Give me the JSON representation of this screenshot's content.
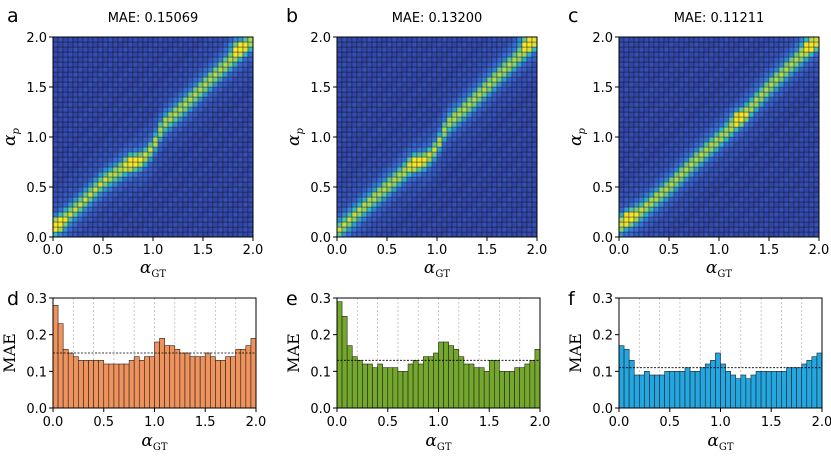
{
  "colors": {
    "orange": "#F0925B",
    "green": "#74A82C",
    "blue": "#22A7E2",
    "heat_low": "#2E2E8C",
    "heat_mid": "#2CB8CE",
    "heat_high": "#F7E62B"
  },
  "chart_data": [
    {
      "panel": "a",
      "type": "heatmap",
      "title": "MAE: 0.15069",
      "xlabel": "α",
      "xlabel_sub": "GT",
      "ylabel": "α",
      "ylabel_sub": "p",
      "xlim": [
        0,
        2
      ],
      "ylim": [
        0,
        2
      ],
      "xticks": [
        "0.0",
        "0.5",
        "1.0",
        "1.5",
        "2.0"
      ],
      "yticks": [
        "0.0",
        "0.5",
        "1.0",
        "1.5",
        "2.0"
      ],
      "bins": 40,
      "ridge": [
        [
          0.0,
          0.08
        ],
        [
          0.25,
          0.3
        ],
        [
          0.5,
          0.55
        ],
        [
          0.75,
          0.72
        ],
        [
          0.9,
          0.78
        ],
        [
          1.0,
          0.9
        ],
        [
          1.1,
          1.12
        ],
        [
          1.3,
          1.3
        ],
        [
          1.6,
          1.6
        ],
        [
          2.0,
          1.98
        ]
      ],
      "peaks": [
        [
          0.05,
          0.12
        ],
        [
          0.8,
          0.75
        ],
        [
          1.85,
          1.9
        ]
      ]
    },
    {
      "panel": "b",
      "type": "heatmap",
      "title": "MAE: 0.13200",
      "xlabel": "α",
      "xlabel_sub": "GT",
      "ylabel": "α",
      "ylabel_sub": "p",
      "xlim": [
        0,
        2
      ],
      "ylim": [
        0,
        2
      ],
      "xticks": [
        "0.0",
        "0.5",
        "1.0",
        "1.5",
        "2.0"
      ],
      "yticks": [
        "0.0",
        "0.5",
        "1.0",
        "1.5",
        "2.0"
      ],
      "bins": 40,
      "ridge": [
        [
          0.0,
          0.05
        ],
        [
          0.25,
          0.28
        ],
        [
          0.5,
          0.5
        ],
        [
          0.75,
          0.72
        ],
        [
          0.9,
          0.78
        ],
        [
          1.0,
          0.9
        ],
        [
          1.1,
          1.12
        ],
        [
          1.3,
          1.3
        ],
        [
          1.6,
          1.6
        ],
        [
          2.0,
          1.98
        ]
      ],
      "peaks": [
        [
          0.8,
          0.75
        ],
        [
          1.9,
          1.95
        ]
      ]
    },
    {
      "panel": "c",
      "type": "heatmap",
      "title": "MAE: 0.11211",
      "xlabel": "α",
      "xlabel_sub": "GT",
      "ylabel": "α",
      "ylabel_sub": "p",
      "xlim": [
        0,
        2
      ],
      "ylim": [
        0,
        2
      ],
      "xticks": [
        "0.0",
        "0.5",
        "1.0",
        "1.5",
        "2.0"
      ],
      "yticks": [
        "0.0",
        "0.5",
        "1.0",
        "1.5",
        "2.0"
      ],
      "bins": 40,
      "ridge": [
        [
          0.0,
          0.1
        ],
        [
          0.25,
          0.28
        ],
        [
          0.5,
          0.5
        ],
        [
          0.75,
          0.75
        ],
        [
          1.0,
          0.98
        ],
        [
          1.25,
          1.22
        ],
        [
          1.5,
          1.5
        ],
        [
          1.75,
          1.75
        ],
        [
          2.0,
          1.98
        ]
      ],
      "peaks": [
        [
          0.1,
          0.2
        ],
        [
          1.2,
          1.2
        ],
        [
          1.9,
          1.92
        ]
      ]
    },
    {
      "panel": "d",
      "type": "bar",
      "xlabel": "α",
      "xlabel_sub": "GT",
      "ylabel": "MAE",
      "xlim": [
        0,
        2
      ],
      "ylim": [
        0,
        0.3
      ],
      "xticks": [
        "0.0",
        "0.5",
        "1.0",
        "1.5",
        "2.0"
      ],
      "yticks": [
        "0.0",
        "0.1",
        "0.2",
        "0.3"
      ],
      "mean_line": 0.15,
      "bar_width": 0.05,
      "values": [
        0.28,
        0.23,
        0.16,
        0.15,
        0.14,
        0.13,
        0.13,
        0.13,
        0.13,
        0.13,
        0.12,
        0.12,
        0.12,
        0.12,
        0.12,
        0.13,
        0.14,
        0.13,
        0.14,
        0.14,
        0.18,
        0.19,
        0.17,
        0.17,
        0.16,
        0.15,
        0.15,
        0.14,
        0.14,
        0.14,
        0.15,
        0.14,
        0.13,
        0.13,
        0.14,
        0.14,
        0.16,
        0.16,
        0.17,
        0.19
      ]
    },
    {
      "panel": "e",
      "type": "bar",
      "xlabel": "α",
      "xlabel_sub": "GT",
      "ylabel": "MAE",
      "xlim": [
        0,
        2
      ],
      "ylim": [
        0,
        0.3
      ],
      "xticks": [
        "0.0",
        "0.5",
        "1.0",
        "1.5",
        "2.0"
      ],
      "yticks": [
        "0.0",
        "0.1",
        "0.2",
        "0.3"
      ],
      "mean_line": 0.13,
      "bar_width": 0.05,
      "values": [
        0.29,
        0.25,
        0.17,
        0.14,
        0.13,
        0.12,
        0.12,
        0.11,
        0.12,
        0.11,
        0.11,
        0.11,
        0.1,
        0.1,
        0.12,
        0.13,
        0.12,
        0.14,
        0.14,
        0.15,
        0.18,
        0.18,
        0.17,
        0.16,
        0.14,
        0.12,
        0.12,
        0.11,
        0.11,
        0.1,
        0.13,
        0.13,
        0.1,
        0.1,
        0.1,
        0.11,
        0.11,
        0.12,
        0.13,
        0.16
      ]
    },
    {
      "panel": "f",
      "type": "bar",
      "xlabel": "α",
      "xlabel_sub": "GT",
      "ylabel": "MAE",
      "xlim": [
        0,
        2
      ],
      "ylim": [
        0,
        0.3
      ],
      "xticks": [
        "0.0",
        "0.5",
        "1.0",
        "1.5",
        "2.0"
      ],
      "yticks": [
        "0.0",
        "0.1",
        "0.2",
        "0.3"
      ],
      "mean_line": 0.11,
      "bar_width": 0.05,
      "values": [
        0.17,
        0.16,
        0.13,
        0.09,
        0.09,
        0.1,
        0.09,
        0.09,
        0.09,
        0.1,
        0.1,
        0.1,
        0.1,
        0.11,
        0.1,
        0.1,
        0.11,
        0.12,
        0.13,
        0.15,
        0.12,
        0.1,
        0.09,
        0.08,
        0.09,
        0.08,
        0.09,
        0.1,
        0.1,
        0.1,
        0.1,
        0.1,
        0.1,
        0.11,
        0.11,
        0.11,
        0.12,
        0.13,
        0.14,
        0.15
      ]
    }
  ]
}
